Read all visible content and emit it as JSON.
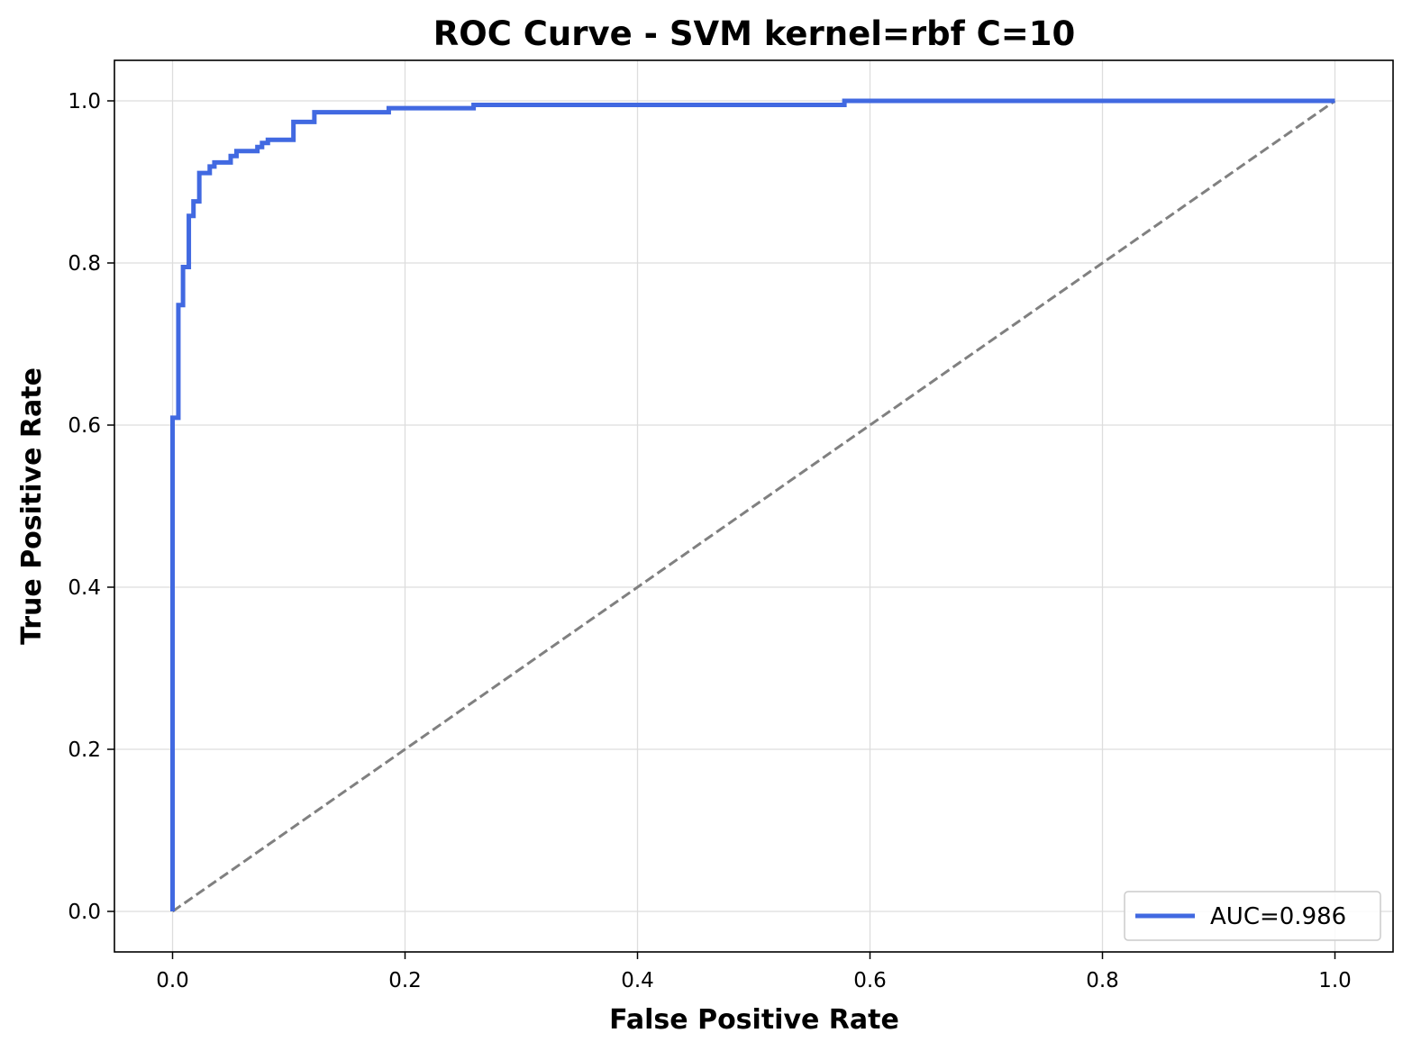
{
  "chart_data": {
    "type": "line",
    "title": "ROC Curve - SVM kernel=rbf C=10",
    "xlabel": "False Positive Rate",
    "ylabel": "True Positive Rate",
    "xlim": [
      -0.05,
      1.05
    ],
    "ylim": [
      -0.05,
      1.05
    ],
    "grid": true,
    "legend_position": "lower-right",
    "x_ticks": [
      0.0,
      0.2,
      0.4,
      0.6,
      0.8,
      1.0
    ],
    "y_ticks": [
      0.0,
      0.2,
      0.4,
      0.6,
      0.8,
      1.0
    ],
    "x_tick_labels": [
      "0.0",
      "0.2",
      "0.4",
      "0.6",
      "0.8",
      "1.0"
    ],
    "y_tick_labels": [
      "0.0",
      "0.2",
      "0.4",
      "0.6",
      "0.8",
      "1.0"
    ],
    "series": [
      {
        "name": "AUC=0.986",
        "color": "#4169E1",
        "style": "solid",
        "step": true,
        "x": [
          0.0,
          0.0,
          0.005,
          0.005,
          0.009,
          0.009,
          0.014,
          0.014,
          0.018,
          0.018,
          0.023,
          0.023,
          0.032,
          0.032,
          0.036,
          0.036,
          0.05,
          0.05,
          0.055,
          0.055,
          0.073,
          0.073,
          0.077,
          0.077,
          0.082,
          0.082,
          0.104,
          0.104,
          0.122,
          0.122,
          0.186,
          0.186,
          0.259,
          0.259,
          0.578,
          0.578,
          1.0
        ],
        "y": [
          0.0,
          0.609,
          0.609,
          0.748,
          0.748,
          0.795,
          0.795,
          0.858,
          0.858,
          0.876,
          0.876,
          0.911,
          0.911,
          0.919,
          0.919,
          0.924,
          0.924,
          0.932,
          0.932,
          0.938,
          0.938,
          0.943,
          0.943,
          0.948,
          0.948,
          0.952,
          0.952,
          0.974,
          0.974,
          0.986,
          0.986,
          0.991,
          0.991,
          0.995,
          0.995,
          1.0,
          1.0
        ]
      },
      {
        "name": "",
        "color": "#808080",
        "style": "dashed",
        "x": [
          0.0,
          1.0
        ],
        "y": [
          0.0,
          1.0
        ]
      }
    ]
  }
}
